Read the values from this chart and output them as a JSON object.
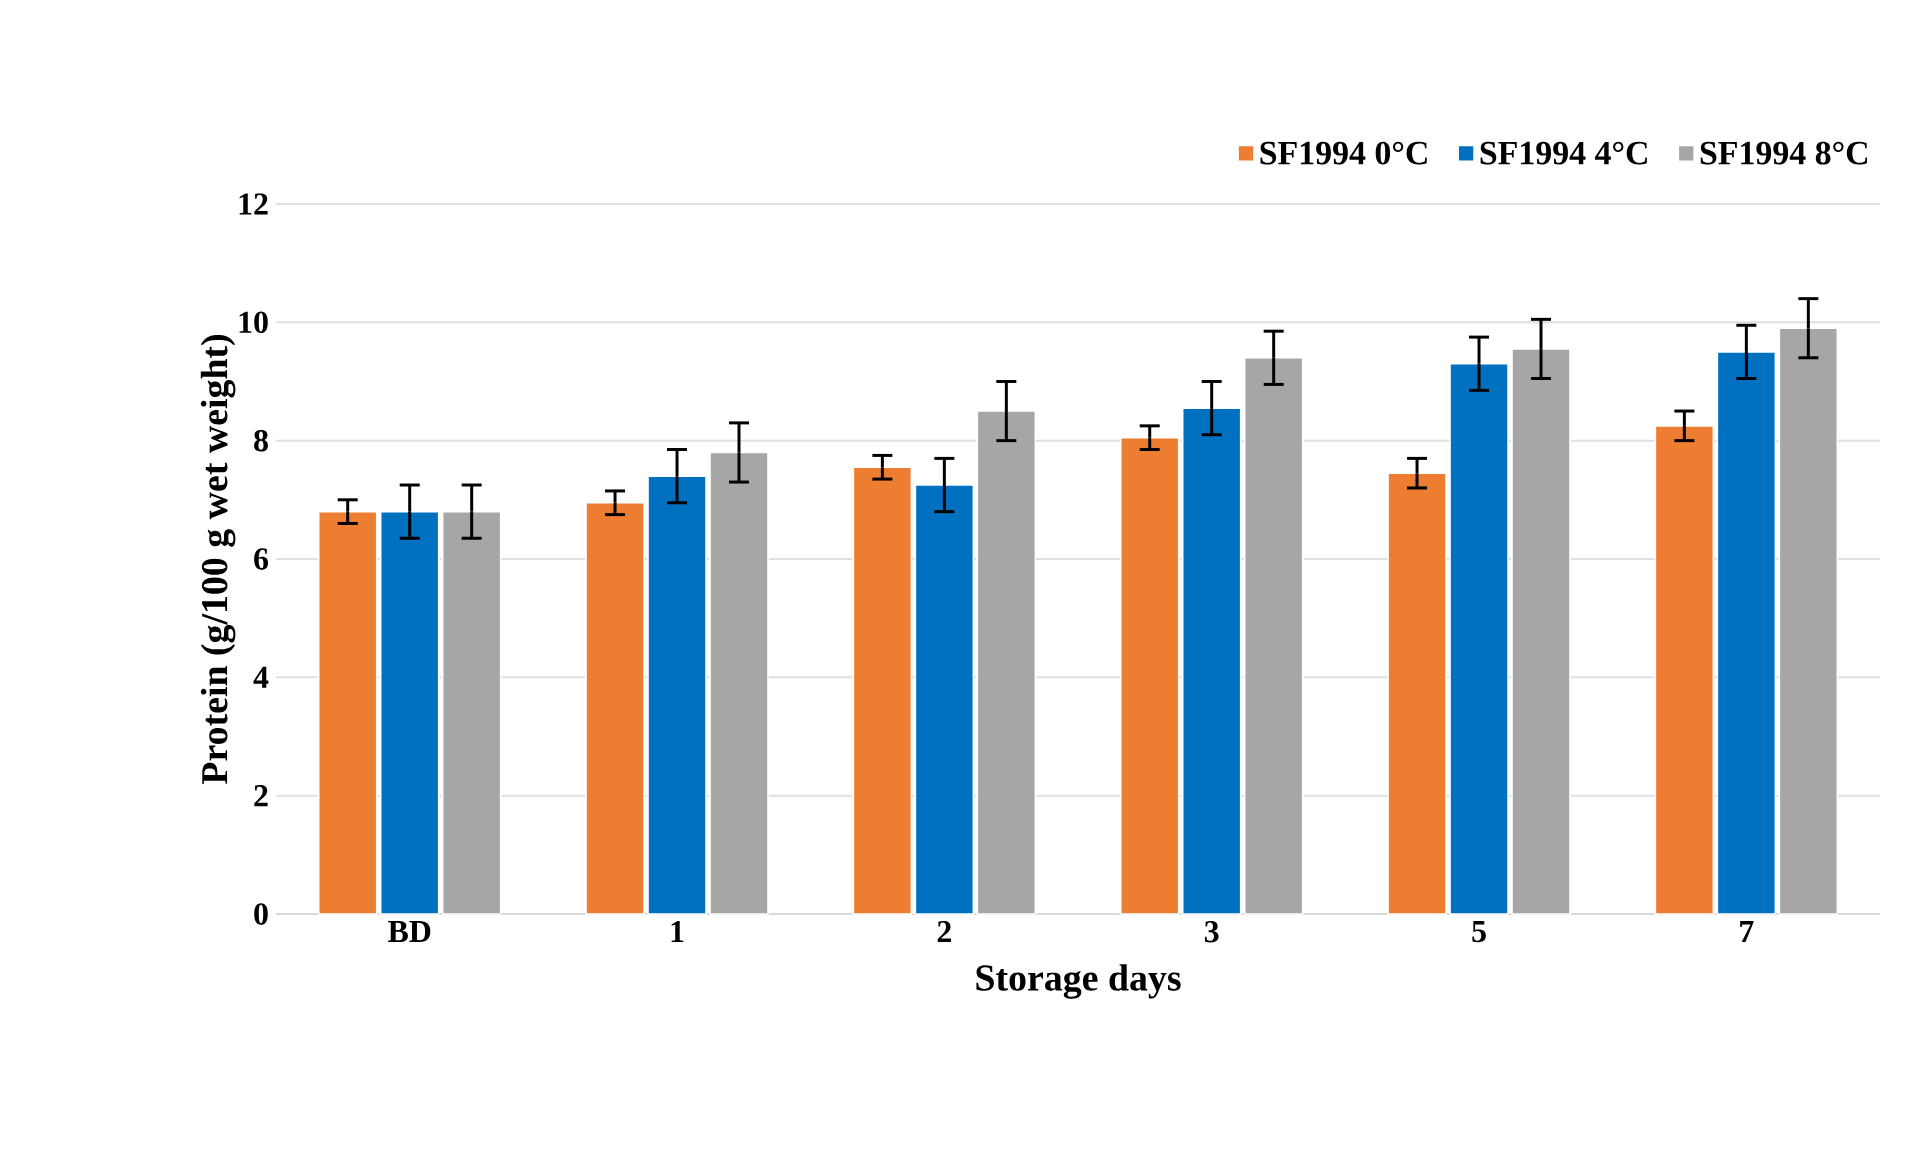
{
  "chart_data": {
    "type": "bar",
    "xlabel": "Storage days",
    "ylabel": "Protein (g/100 g wet weight)",
    "categories": [
      "BD",
      "1",
      "2",
      "3",
      "5",
      "7"
    ],
    "series": [
      {
        "name": "SF1994 0°C",
        "color": "#ed7d31",
        "values": [
          6.8,
          6.95,
          7.55,
          8.05,
          7.45,
          8.25
        ],
        "errors": [
          0.2,
          0.2,
          0.2,
          0.2,
          0.25,
          0.25
        ]
      },
      {
        "name": "SF1994 4°C",
        "color": "#0070c0",
        "values": [
          6.8,
          7.4,
          7.25,
          8.55,
          9.3,
          9.5
        ],
        "errors": [
          0.45,
          0.45,
          0.45,
          0.45,
          0.45,
          0.45
        ]
      },
      {
        "name": "SF1994 8°C",
        "color": "#a6a6a6",
        "values": [
          6.8,
          7.8,
          8.5,
          9.4,
          9.55,
          9.9
        ],
        "errors": [
          0.45,
          0.5,
          0.5,
          0.45,
          0.5,
          0.5
        ]
      }
    ],
    "ylim": [
      0,
      12
    ],
    "yticks": [
      0,
      2,
      4,
      6,
      8,
      10,
      12
    ],
    "grid": "y",
    "legend": "top right"
  }
}
